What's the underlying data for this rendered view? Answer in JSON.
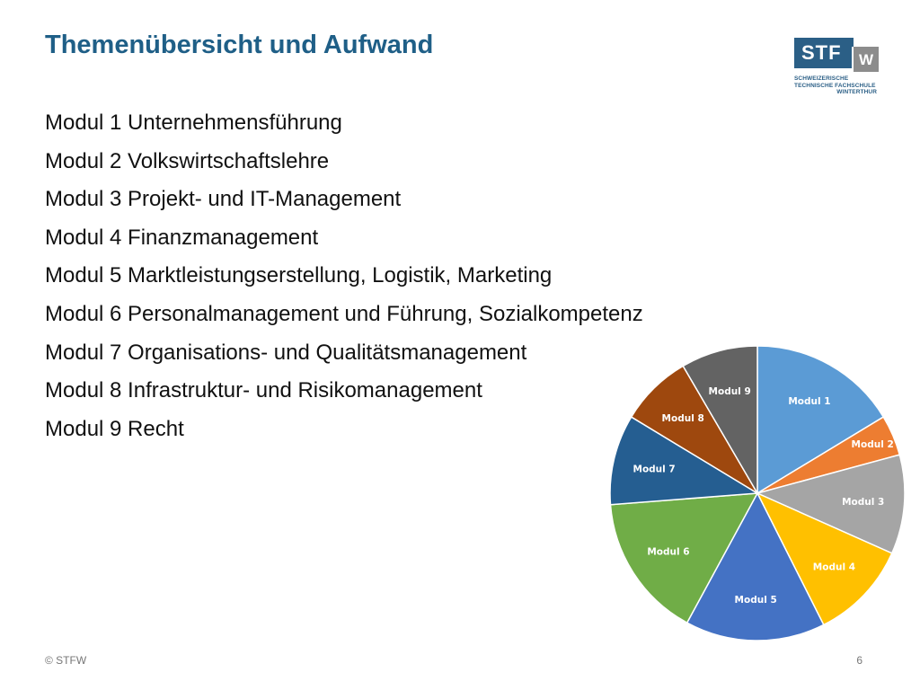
{
  "slide": {
    "title": "Themenübersicht und Aufwand",
    "page_number": "6",
    "copyright": "© STFW"
  },
  "logo": {
    "mark": "STF",
    "mark_w": "W",
    "line1": "SCHWEIZERISCHE",
    "line2": "TECHNISCHE FACHSCHULE",
    "line3": "WINTERTHUR"
  },
  "modules": [
    "Modul 1 Unternehmensführung",
    "Modul 2 Volkswirtschaftslehre",
    "Modul 3 Projekt- und IT-Management",
    "Modul 4 Finanzmanagement",
    "Modul 5 Marktleistungserstellung, Logistik, Marketing",
    "Modul 6 Personalmanagement und Führung, Sozialkompetenz",
    "Modul 7 Organisations- und Qualitätsmanagement",
    "Modul 8 Infrastruktur- und Risikomanagement",
    "Modul 9 Recht"
  ],
  "chart_data": {
    "type": "pie",
    "title": "",
    "start_angle": "top",
    "direction": "clockwise",
    "slices": [
      {
        "label": "Modul 1",
        "value": 16.5,
        "color": "#5b9bd5"
      },
      {
        "label": "Modul 2",
        "value": 4.5,
        "color": "#ed7d31"
      },
      {
        "label": "Modul 3",
        "value": 11,
        "color": "#a5a5a5"
      },
      {
        "label": "Modul 4",
        "value": 11,
        "color": "#ffc000"
      },
      {
        "label": "Modul 5",
        "value": 15.5,
        "color": "#4472c4"
      },
      {
        "label": "Modul 6",
        "value": 16,
        "color": "#70ad47"
      },
      {
        "label": "Modul 7",
        "value": 10,
        "color": "#255e91"
      },
      {
        "label": "Modul 8",
        "value": 8,
        "color": "#9e480e"
      },
      {
        "label": "Modul 9",
        "value": 8.5,
        "color": "#636363"
      }
    ]
  }
}
